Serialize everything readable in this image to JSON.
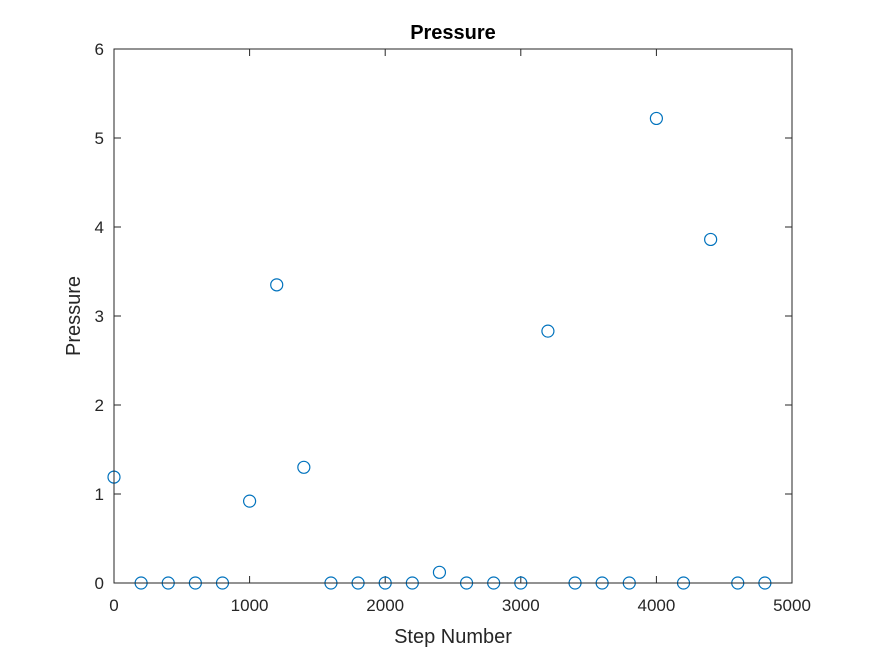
{
  "chart_data": {
    "type": "scatter",
    "title": "Pressure",
    "xlabel": "Step Number",
    "ylabel": "Pressure",
    "xlim": [
      0,
      5000
    ],
    "ylim": [
      0,
      6
    ],
    "xticks": [
      0,
      1000,
      2000,
      3000,
      4000,
      5000
    ],
    "yticks": [
      0,
      1,
      2,
      3,
      4,
      5,
      6
    ],
    "xtick_labels": [
      "0",
      "1000",
      "2000",
      "3000",
      "4000",
      "5000"
    ],
    "ytick_labels": [
      "0",
      "1",
      "2",
      "3",
      "4",
      "5",
      "6"
    ],
    "grid": false,
    "marker": "circle",
    "marker_color": "#0072BD",
    "series": [
      {
        "x": [
          0,
          200,
          400,
          600,
          800,
          1000,
          1200,
          1400,
          1600,
          1800,
          2000,
          2200,
          2400,
          2600,
          2800,
          3000,
          3200,
          3400,
          3600,
          3800,
          4000,
          4200,
          4400,
          4600,
          4800
        ],
        "y": [
          1.19,
          0,
          0,
          0,
          0,
          0.92,
          3.35,
          1.3,
          0,
          0,
          0,
          0,
          0.12,
          0,
          0,
          0,
          2.83,
          0,
          0,
          0,
          5.22,
          0,
          3.86,
          0,
          0
        ]
      }
    ]
  }
}
